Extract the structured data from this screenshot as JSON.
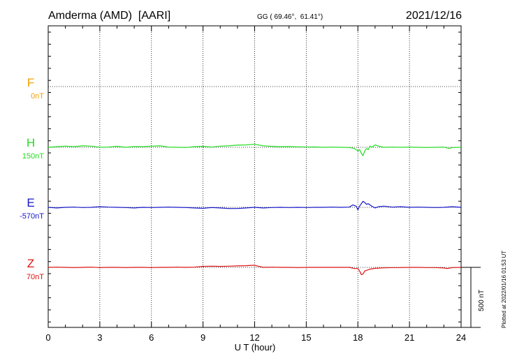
{
  "header": {
    "station": "Amderma (AMD)  [AARI]",
    "coords": "GG ( 69.46°,  61.41°)",
    "date": "2021/12/16"
  },
  "footer": {
    "plotted": "Plotted at 2022/01/16 01:53 UT"
  },
  "chart_data": {
    "type": "line",
    "xlabel": "U T (hour)",
    "ylabel": "",
    "xlim": [
      0,
      24
    ],
    "xticks": [
      "0",
      "3",
      "6",
      "9",
      "12",
      "15",
      "18",
      "21",
      "24"
    ],
    "grid": true,
    "scale_bar": {
      "label": "500 nT",
      "value_nT": 500
    },
    "series": [
      {
        "name": "F",
        "baseline": "0nT",
        "color": "#f5a000",
        "x": [],
        "y": []
      },
      {
        "name": "H",
        "baseline": "150nT",
        "color": "#22dd22",
        "x": [
          0,
          0.5,
          1,
          1.5,
          2,
          2.5,
          3,
          3.5,
          4,
          4.5,
          5,
          5.5,
          6,
          6.5,
          7,
          7.5,
          8,
          8.5,
          9,
          9.5,
          10,
          10.5,
          11,
          11.5,
          12,
          12.5,
          13,
          13.5,
          14,
          14.5,
          15,
          15.5,
          16,
          16.5,
          17,
          17.5,
          17.8,
          18,
          18.1,
          18.2,
          18.3,
          18.4,
          18.5,
          18.6,
          18.7,
          18.8,
          19,
          19.2,
          19.5,
          20,
          20.5,
          21,
          21.5,
          22,
          22.5,
          23,
          23.3,
          23.5,
          24
        ],
        "y": [
          150,
          155,
          160,
          155,
          162,
          160,
          150,
          152,
          158,
          150,
          156,
          155,
          160,
          162,
          152,
          150,
          148,
          155,
          158,
          152,
          160,
          162,
          168,
          170,
          175,
          162,
          158,
          155,
          156,
          154,
          152,
          153,
          150,
          152,
          150,
          148,
          140,
          120,
          130,
          100,
          80,
          120,
          140,
          130,
          160,
          150,
          170,
          160,
          150,
          152,
          150,
          152,
          150,
          148,
          150,
          152,
          140,
          148,
          150
        ]
      },
      {
        "name": "E",
        "baseline": "-570nT",
        "color": "#1515c8",
        "x": [
          0,
          0.5,
          1,
          1.5,
          2,
          2.5,
          3,
          3.5,
          4,
          4.5,
          5,
          5.5,
          6,
          6.5,
          7,
          7.5,
          8,
          8.5,
          9,
          9.5,
          10,
          10.5,
          11,
          11.5,
          12,
          12.5,
          13,
          13.5,
          14,
          14.5,
          15,
          15.5,
          16,
          16.5,
          17,
          17.5,
          17.7,
          17.9,
          18,
          18.1,
          18.2,
          18.3,
          18.4,
          18.5,
          18.6,
          18.8,
          19,
          19.2,
          19.5,
          20,
          20.5,
          21,
          21.5,
          22,
          22.5,
          23,
          23.5,
          24
        ],
        "y": [
          -570,
          -575,
          -570,
          -568,
          -572,
          -570,
          -565,
          -568,
          -570,
          -572,
          -575,
          -570,
          -572,
          -570,
          -568,
          -570,
          -572,
          -575,
          -578,
          -572,
          -575,
          -580,
          -580,
          -575,
          -570,
          -575,
          -572,
          -570,
          -572,
          -570,
          -572,
          -570,
          -570,
          -568,
          -570,
          -568,
          -550,
          -560,
          -590,
          -560,
          -540,
          -520,
          -530,
          -545,
          -540,
          -560,
          -575,
          -565,
          -560,
          -568,
          -565,
          -570,
          -568,
          -570,
          -572,
          -570,
          -565,
          -570
        ]
      },
      {
        "name": "Z",
        "baseline": "70nT",
        "color": "#dd1111",
        "x": [
          0,
          0.5,
          1,
          1.5,
          2,
          2.5,
          3,
          3.5,
          4,
          4.5,
          5,
          5.5,
          6,
          6.5,
          7,
          7.5,
          8,
          8.5,
          9,
          9.5,
          10,
          10.5,
          11,
          11.5,
          12,
          12.2,
          12.5,
          13,
          13.5,
          14,
          14.5,
          15,
          15.5,
          16,
          16.5,
          17,
          17.5,
          17.8,
          18,
          18.1,
          18.2,
          18.3,
          18.4,
          18.5,
          18.7,
          19,
          19.5,
          20,
          20.5,
          21,
          21.5,
          22,
          22.5,
          23,
          23.2,
          23.5,
          24
        ],
        "y": [
          70,
          72,
          70,
          68,
          70,
          72,
          68,
          70,
          70,
          68,
          70,
          70,
          68,
          70,
          70,
          72,
          70,
          72,
          78,
          80,
          78,
          80,
          82,
          84,
          88,
          80,
          70,
          72,
          70,
          70,
          68,
          70,
          70,
          70,
          70,
          70,
          70,
          60,
          60,
          40,
          10,
          15,
          40,
          45,
          55,
          62,
          66,
          68,
          68,
          70,
          70,
          68,
          68,
          65,
          60,
          68,
          70
        ]
      }
    ]
  }
}
